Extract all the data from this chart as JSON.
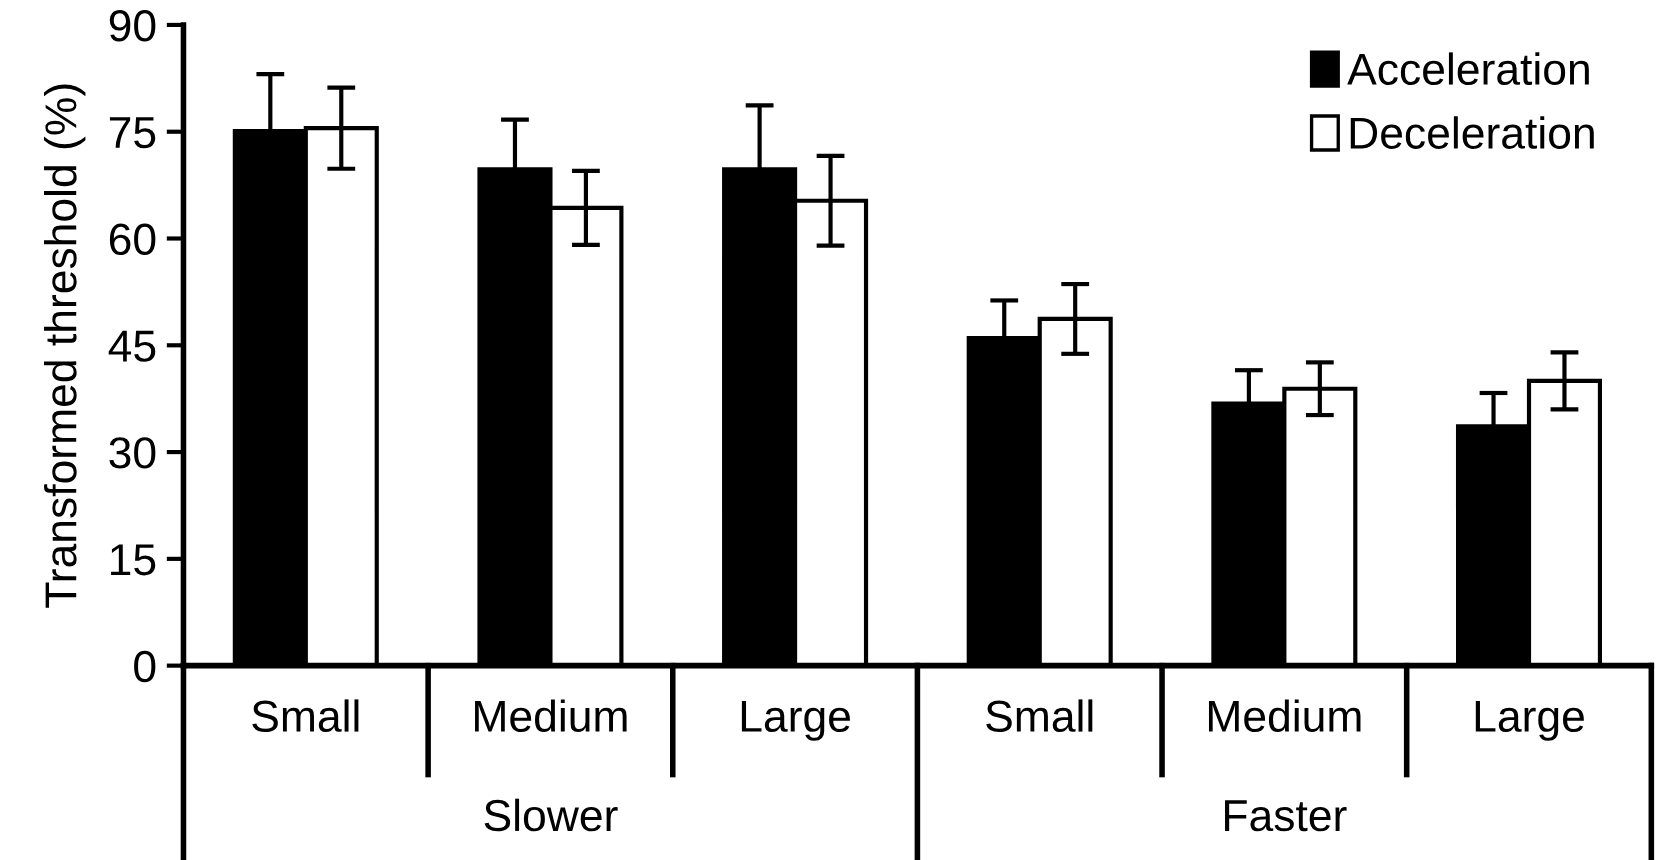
{
  "chart_data": {
    "type": "bar",
    "ylabel": "Transformed threshold (%)",
    "categories": [
      "Small",
      "Medium",
      "Large",
      "Small",
      "Medium",
      "Large"
    ],
    "series": [
      {
        "name": "Acceleration",
        "color": "#000000",
        "values": [
          75.1,
          69.7,
          69.7,
          46.0,
          36.8,
          33.6
        ],
        "errors": [
          8.0,
          7.0,
          9.0,
          5.3,
          4.7,
          4.7
        ]
      },
      {
        "name": "Deceleration",
        "color": "#ffffff",
        "values": [
          75.5,
          64.3,
          65.3,
          48.7,
          38.9,
          40.0
        ],
        "errors": [
          5.7,
          5.2,
          6.3,
          4.9,
          3.7,
          4.0
        ]
      }
    ],
    "annotations": [
      "Slower",
      "Faster"
    ],
    "ylim": [
      0,
      90
    ],
    "yticks": [
      0,
      15,
      30,
      45,
      60,
      75,
      90
    ],
    "grid": false,
    "legend": "top right"
  }
}
